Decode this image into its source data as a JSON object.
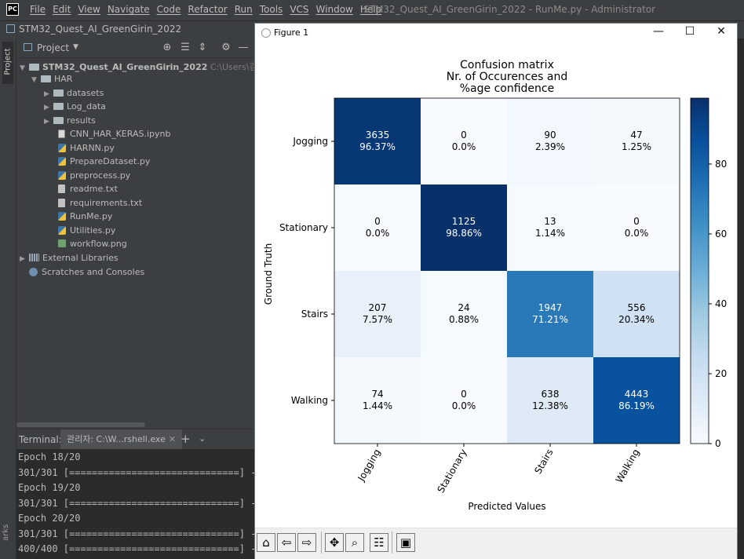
{
  "menubar": {
    "logo": "PC",
    "items": [
      "File",
      "Edit",
      "View",
      "Navigate",
      "Code",
      "Refactor",
      "Run",
      "Tools",
      "VCS",
      "Window",
      "Help"
    ],
    "title": "STM32_Quest_AI_GreenGirin_2022 - RunMe.py - Administrator"
  },
  "navbar": {
    "project": "STM32_Quest_AI_GreenGirin_2022"
  },
  "sidebar": {
    "project_tab": "Project",
    "bottom_tab": "arks"
  },
  "project_panel": {
    "title": "Project",
    "root": {
      "name": "STM32_Quest_AI_GreenGirin_2022",
      "path": "C:\\Users\\김민수\\"
    },
    "items": [
      {
        "label": "HAR",
        "type": "folder"
      },
      {
        "label": "datasets",
        "type": "folder"
      },
      {
        "label": "Log_data",
        "type": "folder"
      },
      {
        "label": "results",
        "type": "folder"
      },
      {
        "label": "CNN_HAR_KERAS.ipynb",
        "type": "notebook"
      },
      {
        "label": "HARNN.py",
        "type": "python"
      },
      {
        "label": "PrepareDataset.py",
        "type": "python"
      },
      {
        "label": "preprocess.py",
        "type": "python"
      },
      {
        "label": "readme.txt",
        "type": "text"
      },
      {
        "label": "requirements.txt",
        "type": "text"
      },
      {
        "label": "RunMe.py",
        "type": "python"
      },
      {
        "label": "Utilities.py",
        "type": "python"
      },
      {
        "label": "workflow.png",
        "type": "image"
      },
      {
        "label": "External Libraries",
        "type": "library"
      },
      {
        "label": "Scratches and Consoles",
        "type": "scratch"
      }
    ]
  },
  "terminal": {
    "label": "Terminal:",
    "tab": "관리자: C:\\W...rshell.exe",
    "add": "+",
    "lines": [
      "Epoch 18/20",
      "301/301 [==============================] -",
      "Epoch 19/20",
      "301/301 [==============================] -",
      "Epoch 20/20",
      "301/301 [==============================] -",
      "400/400 [==============================] -"
    ]
  },
  "figure": {
    "window_title": "Figure 1",
    "toolbar": [
      "home-icon",
      "back-icon",
      "forward-icon",
      "pan-icon",
      "zoom-icon",
      "configure-icon",
      "save-icon"
    ]
  },
  "chart_data": {
    "type": "heatmap",
    "title": "Confusion matrix\nNr. of Occurences and\n%age confidence",
    "xlabel": "Predicted Values",
    "ylabel": "Ground Truth",
    "rows": [
      "Jogging",
      "Stationary",
      "Stairs",
      "Walking"
    ],
    "cols": [
      "Jogging",
      "Stationary",
      "Stairs",
      "Walking"
    ],
    "counts": [
      [
        3635,
        0,
        90,
        47
      ],
      [
        0,
        1125,
        13,
        0
      ],
      [
        207,
        24,
        1947,
        556
      ],
      [
        74,
        0,
        638,
        4443
      ]
    ],
    "percent_labels": [
      [
        "96.37%",
        "0.0%",
        "2.39%",
        "1.25%"
      ],
      [
        "0.0%",
        "98.86%",
        "1.14%",
        "0.0%"
      ],
      [
        "7.57%",
        "0.88%",
        "71.21%",
        "20.34%"
      ],
      [
        "1.44%",
        "0.0%",
        "12.38%",
        "86.19%"
      ]
    ],
    "colormap": "Blues",
    "colorbar_ticks": [
      0,
      20,
      40,
      60,
      80
    ],
    "colorbar_range": [
      0,
      98.86
    ],
    "colors": {
      "low": "#f7fbff",
      "high": "#08306b"
    }
  }
}
